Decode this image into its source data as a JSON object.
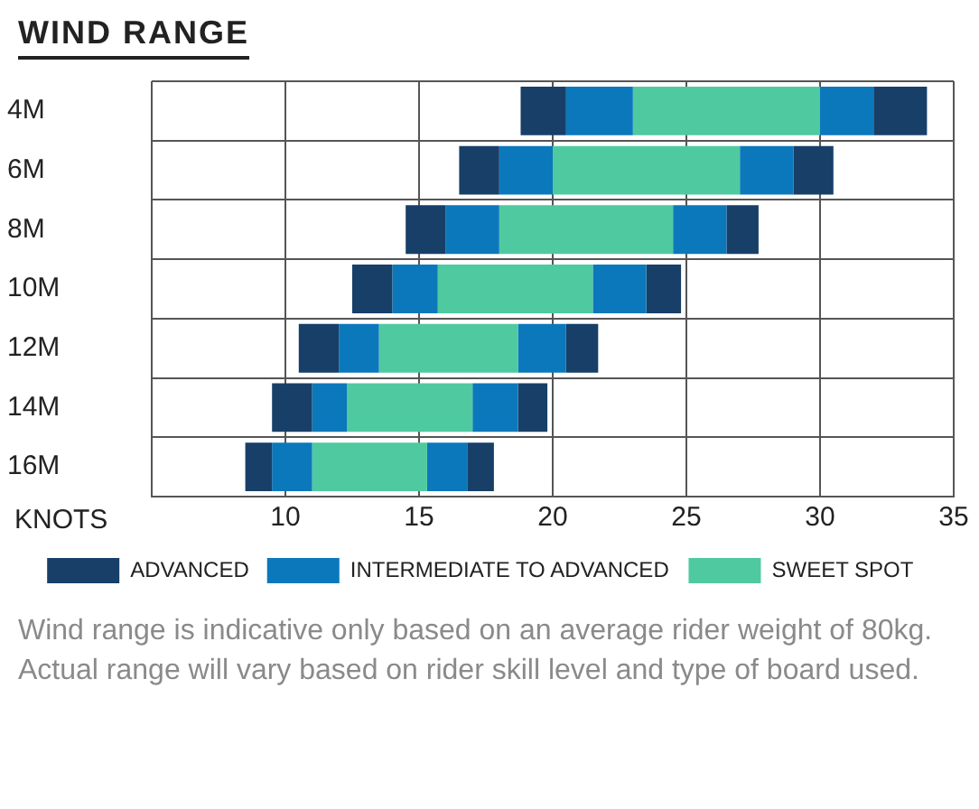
{
  "chart_data": {
    "type": "bar",
    "orientation": "horizontal",
    "title": "WIND RANGE",
    "xlabel": "KNOTS",
    "categories": [
      "4M",
      "6M",
      "8M",
      "10M",
      "12M",
      "14M",
      "16M"
    ],
    "series": [
      {
        "name": "ADVANCED",
        "color": "#173f68",
        "base": [
          18.8,
          16.5,
          14.5,
          12.5,
          10.5,
          9.5,
          8.5
        ],
        "values": [
          1.7,
          1.5,
          1.5,
          1.5,
          1.5,
          1.5,
          1
        ]
      },
      {
        "name": "INTERMEDIATE TO ADVANCED",
        "color": "#0b78bb",
        "base": [
          20.5,
          18,
          16,
          14,
          12,
          11,
          9.5
        ],
        "values": [
          2.5,
          2,
          2,
          1.7,
          1.5,
          1.3,
          1.5
        ]
      },
      {
        "name": "SWEET SPOT",
        "color": "#4fc9a0",
        "base": [
          23,
          20,
          18,
          15.7,
          13.5,
          12.3,
          11
        ],
        "values": [
          7,
          7,
          6.5,
          5.8,
          5.2,
          4.7,
          4.3
        ]
      },
      {
        "color": "#0b78bb",
        "base": [
          30,
          27,
          24.5,
          21.5,
          18.7,
          17,
          15.3
        ],
        "values": [
          2,
          2,
          2,
          2,
          1.8,
          1.7,
          1.5
        ]
      },
      {
        "color": "#173f68",
        "base": [
          32,
          29,
          26.5,
          23.5,
          20.5,
          18.7,
          16.8
        ],
        "values": [
          2,
          1.5,
          1.2,
          1.3,
          1.2,
          1.1,
          1
        ]
      }
    ],
    "xlim": [
      5,
      35
    ],
    "xticks": [
      {
        "value": 5,
        "label": null
      },
      10,
      15,
      20,
      25,
      30,
      35
    ],
    "grid": true,
    "legend": "bottom",
    "annotations": [
      "Wind range is indicative only based on an average rider weight of 80kg. Actual range will vary based on rider skill level and type of board used."
    ]
  }
}
